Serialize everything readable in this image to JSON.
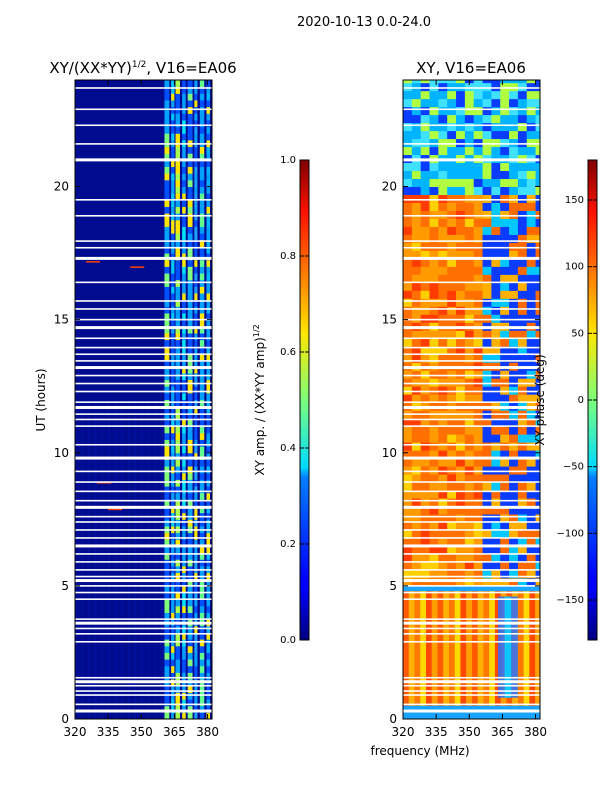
{
  "suptitle": "2020-10-13 0.0-24.0",
  "chart_data": [
    {
      "type": "heatmap",
      "title_base": "XY/(XX*YY)",
      "title_exponent": "1/2",
      "title_suffix": ", V16=EA06",
      "xlabel": "",
      "ylabel": "UT (hours)",
      "xlim": [
        320,
        382
      ],
      "ylim": [
        0,
        24
      ],
      "xticks": [
        320,
        335,
        350,
        365,
        380
      ],
      "yticks": [
        0,
        5,
        10,
        15,
        20
      ],
      "colorbar": {
        "label_base": "XY amp. / (XX*YY amp)",
        "label_exponent": "1/2",
        "range": [
          0.0,
          1.0
        ],
        "ticks": [
          "0.0",
          "0.2",
          "0.4",
          "0.6",
          "0.8",
          "1.0"
        ]
      }
    },
    {
      "type": "heatmap",
      "title": "XY, V16=EA06",
      "xlabel": "frequency (MHz)",
      "ylabel": "",
      "xlim": [
        320,
        382
      ],
      "ylim": [
        0,
        24
      ],
      "xticks": [
        320,
        335,
        350,
        365,
        380
      ],
      "yticks": [
        0,
        5,
        10,
        15,
        20
      ],
      "colorbar": {
        "label": "XY phase (deg)",
        "range": [
          -180,
          180
        ],
        "ticks": [
          "−150",
          "−100",
          "−50",
          "0",
          "50",
          "100",
          "150"
        ]
      }
    }
  ]
}
